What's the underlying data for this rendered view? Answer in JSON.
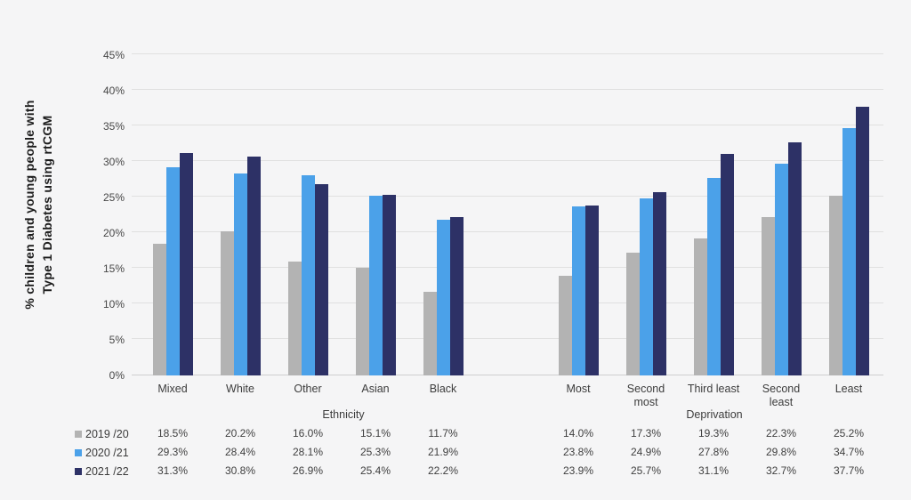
{
  "chart_data": {
    "type": "bar",
    "title": "",
    "ylabel_line1": "% children and young people with",
    "ylabel_line2": "Type 1 Diabetes using rtCGM",
    "ylim": [
      0,
      45
    ],
    "y_tick_step": 5,
    "y_tick_suffix": "%",
    "grid": true,
    "legend_position": "bottom-table",
    "categories": [
      "Mixed",
      "White",
      "Other",
      "Asian",
      "Black",
      "",
      "Most",
      "Second most",
      "Third least",
      "Second least",
      "Least"
    ],
    "group_labels": [
      "Ethnicity",
      "Deprivation"
    ],
    "series": [
      {
        "name": "2019 /20",
        "color": "#b3b3b3",
        "values": [
          18.5,
          20.2,
          16.0,
          15.1,
          11.7,
          null,
          14.0,
          17.3,
          19.3,
          22.3,
          25.2
        ],
        "labels": [
          "18.5%",
          "20.2%",
          "16.0%",
          "15.1%",
          "11.7%",
          "",
          "14.0%",
          "17.3%",
          "19.3%",
          "22.3%",
          "25.2%"
        ]
      },
      {
        "name": "2020 /21",
        "color": "#4ba1e9",
        "values": [
          29.3,
          28.4,
          28.1,
          25.3,
          21.9,
          null,
          23.8,
          24.9,
          27.8,
          29.8,
          34.7
        ],
        "labels": [
          "29.3%",
          "28.4%",
          "28.1%",
          "25.3%",
          "21.9%",
          "",
          "23.8%",
          "24.9%",
          "27.8%",
          "29.8%",
          "34.7%"
        ]
      },
      {
        "name": "2021 /22",
        "color": "#2d3166",
        "values": [
          31.3,
          30.8,
          26.9,
          25.4,
          22.2,
          null,
          23.9,
          25.7,
          31.1,
          32.7,
          37.7
        ],
        "labels": [
          "31.3%",
          "30.8%",
          "26.9%",
          "25.4%",
          "22.2%",
          "",
          "23.9%",
          "25.7%",
          "31.1%",
          "32.7%",
          "37.7%"
        ]
      }
    ],
    "colors": {
      "background": "#f5f5f6",
      "gridline": "#e0e0e0",
      "axis_line": "#cfcfcf",
      "tick_text": "#474747",
      "label_text": "#3c3c3c",
      "title_text": "#1c1c1c"
    }
  }
}
